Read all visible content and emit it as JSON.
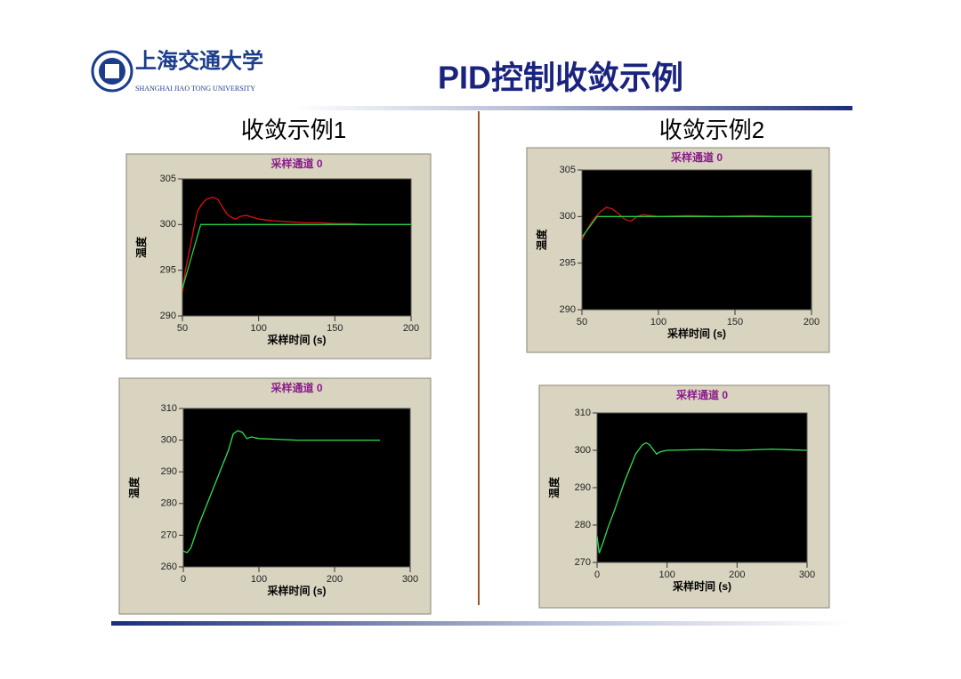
{
  "header": {
    "logo_cn": "上海交通大学",
    "logo_en": "SHANGHAI JIAO TONG UNIVERSITY",
    "title": "PID控制收敛示例"
  },
  "columns": [
    "收敛示例1",
    "收敛示例2"
  ],
  "chart_data": [
    {
      "type": "line",
      "title": "采样通道 0",
      "x_label": "采样时间 (s)",
      "y_label": "温度",
      "xlim": [
        50,
        200
      ],
      "xticks": [
        50,
        100,
        150,
        200
      ],
      "ylim": [
        290,
        305
      ],
      "yticks": [
        290,
        295,
        300,
        305
      ],
      "series": [
        {
          "color": "#e01010",
          "x": [
            50,
            52,
            55,
            58,
            60,
            63,
            66,
            70,
            73,
            76,
            79,
            82,
            85,
            88,
            92,
            96,
            100,
            105,
            110,
            120,
            130,
            140,
            150,
            160,
            170,
            180,
            190,
            200
          ],
          "values": [
            292.5,
            295,
            297.5,
            300,
            301.5,
            302.3,
            302.8,
            303,
            302.8,
            302,
            301.2,
            300.8,
            300.6,
            300.9,
            301,
            300.8,
            300.6,
            300.5,
            300.4,
            300.3,
            300.2,
            300.2,
            300.1,
            300.1,
            300,
            300,
            300,
            300
          ]
        },
        {
          "color": "#20d040",
          "x": [
            50,
            62,
            200
          ],
          "values": [
            293,
            300,
            300
          ]
        }
      ]
    },
    {
      "type": "line",
      "title": "采样通道 0",
      "x_label": "采样时间 (s)",
      "y_label": "温度",
      "xlim": [
        50,
        200
      ],
      "xticks": [
        50,
        100,
        150,
        200
      ],
      "ylim": [
        290,
        305
      ],
      "yticks": [
        290,
        295,
        300,
        305
      ],
      "series": [
        {
          "color": "#e01010",
          "x": [
            50,
            54,
            58,
            62,
            66,
            70,
            74,
            78,
            82,
            86,
            90,
            100,
            120,
            140,
            160,
            180,
            200
          ],
          "values": [
            297.5,
            298.8,
            299.8,
            300.5,
            301,
            300.8,
            300.3,
            299.7,
            299.5,
            300,
            300.2,
            300,
            300.1,
            300,
            300.1,
            300,
            300
          ]
        },
        {
          "color": "#20d040",
          "x": [
            50,
            60,
            200
          ],
          "values": [
            297.8,
            300,
            300
          ]
        }
      ]
    },
    {
      "type": "line",
      "title": "采样通道 0",
      "x_label": "采样时间 (s)",
      "y_label": "温度",
      "xlim": [
        0,
        300
      ],
      "xticks": [
        0,
        100,
        200,
        300
      ],
      "ylim": [
        260,
        310
      ],
      "yticks": [
        260,
        270,
        280,
        290,
        300,
        310
      ],
      "series": [
        {
          "color": "#30e050",
          "x": [
            0,
            5,
            10,
            20,
            30,
            40,
            50,
            60,
            66,
            72,
            78,
            84,
            90,
            100,
            120,
            150,
            200,
            260
          ],
          "values": [
            265,
            264.5,
            266,
            273,
            279,
            285,
            291,
            297,
            302,
            303,
            302.5,
            300.5,
            301,
            300.5,
            300.3,
            300,
            300,
            300
          ]
        }
      ]
    },
    {
      "type": "line",
      "title": "采样通道 0",
      "x_label": "采样时间 (s)",
      "y_label": "温度",
      "xlim": [
        0,
        300
      ],
      "xticks": [
        0,
        100,
        200,
        300
      ],
      "ylim": [
        270,
        310
      ],
      "yticks": [
        270,
        280,
        290,
        300,
        310
      ],
      "series": [
        {
          "color": "#30e050",
          "x": [
            0,
            3,
            8,
            15,
            25,
            40,
            55,
            65,
            70,
            75,
            80,
            85,
            90,
            100,
            150,
            200,
            250,
            300
          ],
          "values": [
            277,
            272.5,
            275,
            279,
            284,
            292,
            299,
            301.5,
            302,
            301.5,
            300.2,
            299,
            299.6,
            300,
            300.2,
            300,
            300.3,
            300
          ]
        }
      ]
    }
  ]
}
